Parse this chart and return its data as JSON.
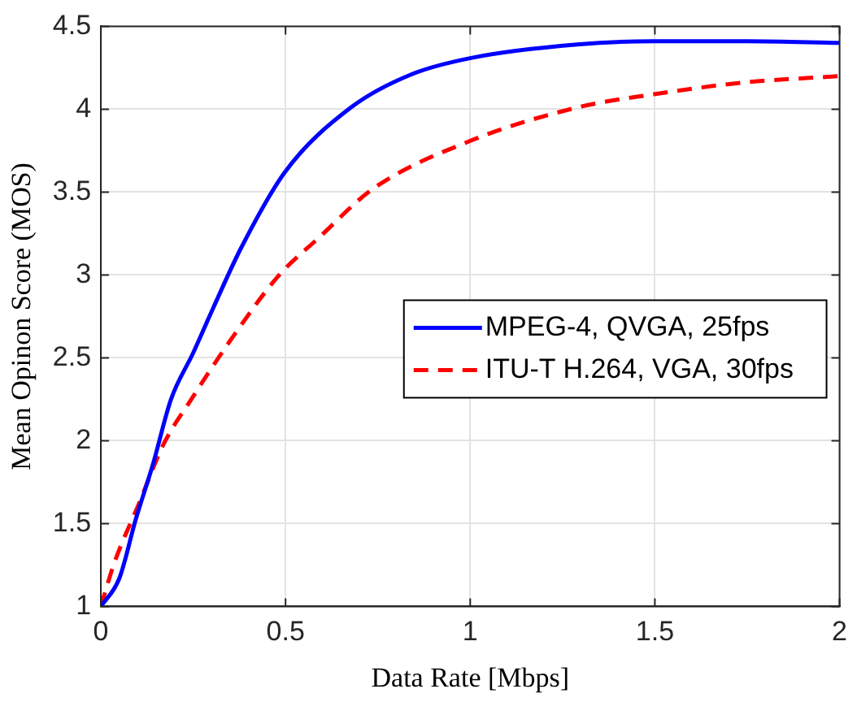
{
  "chart_data": {
    "type": "line",
    "xlabel": "Data Rate [Mbps]",
    "ylabel": "Mean Opinon Score (MOS)",
    "xlim": [
      0,
      2
    ],
    "xticks": [
      0,
      0.5,
      1,
      1.5,
      2
    ],
    "ylim": [
      1,
      4.5
    ],
    "yticks": [
      1,
      1.5,
      2,
      2.5,
      3,
      3.5,
      4,
      4.5
    ],
    "grid": true,
    "legend": "right",
    "marker": "none",
    "series": [
      {
        "name": "MPEG-4, QVGA, 25fps",
        "color": "#0000ff",
        "line_style": "solid",
        "x": [
          0,
          0.05,
          0.095,
          0.14,
          0.19,
          0.25,
          0.304,
          0.379,
          0.498,
          0.677,
          0.841,
          1.005,
          1.289,
          1.497,
          1.75,
          2
        ],
        "values": [
          1,
          1.17,
          1.53,
          1.85,
          2.25,
          2.53,
          2.8,
          3.16,
          3.62,
          4.01,
          4.21,
          4.31,
          4.39,
          4.41,
          4.41,
          4.4
        ]
      },
      {
        "name": "ITU-T H.264, VGA, 30fps",
        "color": "#ff0000",
        "line_style": "dashed",
        "x": [
          0,
          0.036,
          0.103,
          0.17,
          0.245,
          0.349,
          0.483,
          0.588,
          0.737,
          0.99,
          1.289,
          1.497,
          1.736,
          2
        ],
        "values": [
          1,
          1.26,
          1.62,
          1.98,
          2.25,
          2.6,
          3.0,
          3.22,
          3.52,
          3.8,
          4.01,
          4.09,
          4.16,
          4.2
        ]
      }
    ]
  }
}
